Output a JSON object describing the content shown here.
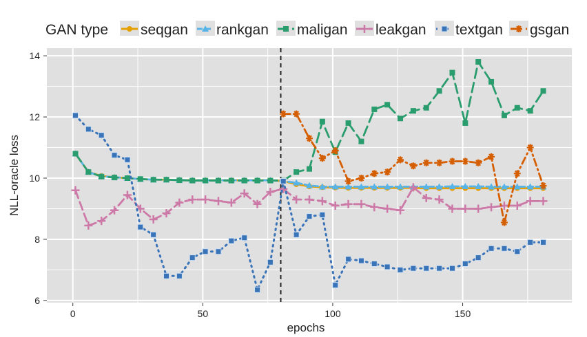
{
  "chart_data": {
    "type": "line",
    "title": "",
    "xlabel": "epochs",
    "ylabel": "NLL-oracle loss",
    "xlim": [
      -10,
      192
    ],
    "ylim": [
      5.93,
      14.25
    ],
    "xticks": [
      0,
      50,
      100,
      150
    ],
    "yticks": [
      6,
      8,
      10,
      12,
      14
    ],
    "grid": true,
    "legend": {
      "title": "GAN type",
      "placement": "top"
    },
    "annotations": [
      {
        "type": "vline",
        "x": 80,
        "style": "dashed",
        "color": "#222222"
      }
    ],
    "x": [
      1,
      6,
      11,
      16,
      21,
      26,
      31,
      36,
      41,
      46,
      51,
      56,
      61,
      66,
      71,
      76,
      81,
      86,
      91,
      96,
      101,
      106,
      111,
      116,
      121,
      126,
      131,
      136,
      141,
      146,
      151,
      156,
      161,
      166,
      171,
      176,
      181
    ],
    "series": [
      {
        "name": "seqgan",
        "color": "#e69f00",
        "marker": "circle",
        "dash": "",
        "values": [
          10.8,
          10.2,
          10.07,
          10.03,
          10.0,
          9.97,
          9.95,
          9.95,
          9.94,
          9.93,
          9.93,
          9.93,
          9.93,
          9.93,
          9.93,
          9.93,
          9.9,
          9.8,
          9.73,
          9.7,
          9.69,
          9.68,
          9.68,
          9.68,
          9.68,
          9.68,
          9.68,
          9.67,
          9.67,
          9.67,
          9.67,
          9.67,
          9.67,
          9.67,
          9.67,
          9.67,
          9.67
        ]
      },
      {
        "name": "rankgan",
        "color": "#56b4e9",
        "marker": "triangle",
        "dash": "8,4",
        "values": [
          10.8,
          10.2,
          10.06,
          10.03,
          10.0,
          9.97,
          9.95,
          9.95,
          9.94,
          9.93,
          9.93,
          9.93,
          9.93,
          9.93,
          9.93,
          9.93,
          9.9,
          9.85,
          9.76,
          9.72,
          9.72,
          9.72,
          9.72,
          9.72,
          9.72,
          9.72,
          9.72,
          9.72,
          9.72,
          9.73,
          9.73,
          9.73,
          9.72,
          9.72,
          9.72,
          9.72,
          9.72
        ]
      },
      {
        "name": "maligan",
        "color": "#2a9d6e",
        "marker": "square",
        "dash": "14,7",
        "values": [
          10.8,
          10.2,
          10.05,
          10.02,
          10.0,
          9.97,
          9.95,
          9.95,
          9.93,
          9.92,
          9.92,
          9.92,
          9.92,
          9.92,
          9.92,
          9.92,
          9.92,
          10.2,
          10.3,
          11.85,
          10.85,
          11.8,
          11.2,
          12.25,
          12.4,
          11.95,
          12.2,
          12.3,
          12.85,
          13.45,
          11.8,
          13.8,
          13.15,
          12.05,
          12.3,
          12.2,
          12.85
        ]
      },
      {
        "name": "leakgan",
        "color": "#cc79a7",
        "marker": "plus",
        "dash": "12,6",
        "values": [
          9.6,
          8.45,
          8.6,
          8.95,
          9.45,
          9.0,
          8.65,
          8.85,
          9.2,
          9.3,
          9.3,
          9.25,
          9.2,
          9.5,
          9.15,
          9.55,
          9.65,
          9.3,
          9.3,
          9.25,
          9.1,
          9.15,
          9.15,
          9.05,
          9.0,
          8.95,
          9.7,
          9.35,
          9.3,
          9.0,
          9.0,
          9.0,
          9.05,
          9.1,
          9.1,
          9.25,
          9.25
        ]
      },
      {
        "name": "textgan",
        "color": "#3a74b8",
        "marker": "square-open",
        "dash": "2,6",
        "values": [
          12.05,
          11.6,
          11.4,
          10.75,
          10.6,
          8.4,
          8.15,
          6.8,
          6.8,
          7.4,
          7.6,
          7.6,
          7.95,
          8.05,
          6.35,
          7.25,
          9.9,
          8.15,
          8.75,
          8.8,
          6.5,
          7.35,
          7.3,
          7.2,
          7.1,
          7.0,
          7.05,
          7.05,
          7.05,
          7.05,
          7.2,
          7.4,
          7.7,
          7.7,
          7.6,
          7.9,
          7.9
        ]
      },
      {
        "name": "gsgan",
        "color": "#d55e00",
        "marker": "star",
        "dash": "10,5,2,5",
        "values": [
          null,
          null,
          null,
          null,
          null,
          null,
          null,
          null,
          null,
          null,
          null,
          null,
          null,
          null,
          null,
          null,
          12.1,
          12.1,
          11.3,
          10.65,
          10.9,
          9.9,
          10.0,
          10.15,
          10.2,
          10.6,
          10.4,
          10.5,
          10.5,
          10.55,
          10.55,
          10.5,
          10.7,
          8.55,
          10.15,
          11.0,
          9.75
        ]
      }
    ]
  }
}
